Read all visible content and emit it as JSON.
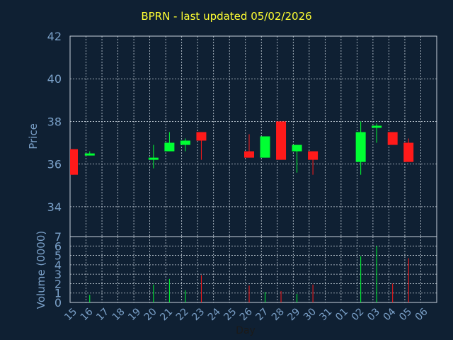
{
  "chart_data": {
    "type": "candlestick",
    "title": "BPRN - last updated 05/02/2026",
    "xlabel": "Day",
    "price_panel": {
      "ylabel": "Price",
      "ylim": [
        32.6,
        42
      ],
      "yticks": [
        34,
        36,
        38,
        40,
        42
      ]
    },
    "volume_panel": {
      "ylabel": "Volume (0000)",
      "ylim": [
        0,
        7
      ],
      "yticks": [
        0,
        1,
        2,
        3,
        4,
        5,
        6,
        7
      ]
    },
    "x_tick_labels": [
      "15",
      "16",
      "17",
      "18",
      "19",
      "20",
      "21",
      "22",
      "23",
      "24",
      "25",
      "26",
      "27",
      "28",
      "29",
      "30",
      "31",
      "01",
      "02",
      "03",
      "04",
      "05",
      "06"
    ],
    "colors": {
      "up": "#00ff33",
      "down": "#ff1a1a",
      "text": "#7aa0c8",
      "grid": "#c8d2dc",
      "title": "#ffff33",
      "background": "#0f2033"
    },
    "candles": [
      {
        "day": "15",
        "open": 36.7,
        "high": 36.7,
        "low": 35.5,
        "close": 35.5,
        "volume": 0
      },
      {
        "day": "16",
        "open": 36.4,
        "high": 36.6,
        "low": 36.4,
        "close": 36.5,
        "volume": 0.8
      },
      {
        "day": "20",
        "open": 36.2,
        "high": 36.9,
        "low": 35.8,
        "close": 36.3,
        "volume": 1.9
      },
      {
        "day": "21",
        "open": 36.6,
        "high": 37.5,
        "low": 36.6,
        "close": 37.0,
        "volume": 2.5
      },
      {
        "day": "22",
        "open": 36.9,
        "high": 37.2,
        "low": 36.6,
        "close": 37.1,
        "volume": 1.3
      },
      {
        "day": "23",
        "open": 37.5,
        "high": 37.5,
        "low": 36.2,
        "close": 37.1,
        "volume": 2.9
      },
      {
        "day": "26",
        "open": 36.6,
        "high": 37.4,
        "low": 36.3,
        "close": 36.3,
        "volume": 1.8
      },
      {
        "day": "27",
        "open": 36.3,
        "high": 37.3,
        "low": 36.3,
        "close": 37.3,
        "volume": 1.1
      },
      {
        "day": "28",
        "open": 38.0,
        "high": 38.0,
        "low": 36.2,
        "close": 36.2,
        "volume": 1.2
      },
      {
        "day": "29",
        "open": 36.6,
        "high": 36.9,
        "low": 35.6,
        "close": 36.9,
        "volume": 0.9
      },
      {
        "day": "30",
        "open": 36.6,
        "high": 36.6,
        "low": 35.5,
        "close": 36.2,
        "volume": 1.9
      },
      {
        "day": "02",
        "open": 36.1,
        "high": 38.0,
        "low": 35.5,
        "close": 37.5,
        "volume": 4.9
      },
      {
        "day": "03",
        "open": 37.7,
        "high": 37.9,
        "low": 37.0,
        "close": 37.8,
        "volume": 6.0
      },
      {
        "day": "04",
        "open": 37.5,
        "high": 37.5,
        "low": 36.9,
        "close": 36.9,
        "volume": 2.0
      },
      {
        "day": "05",
        "open": 37.0,
        "high": 37.2,
        "low": 36.1,
        "close": 36.1,
        "volume": 4.7
      }
    ]
  }
}
